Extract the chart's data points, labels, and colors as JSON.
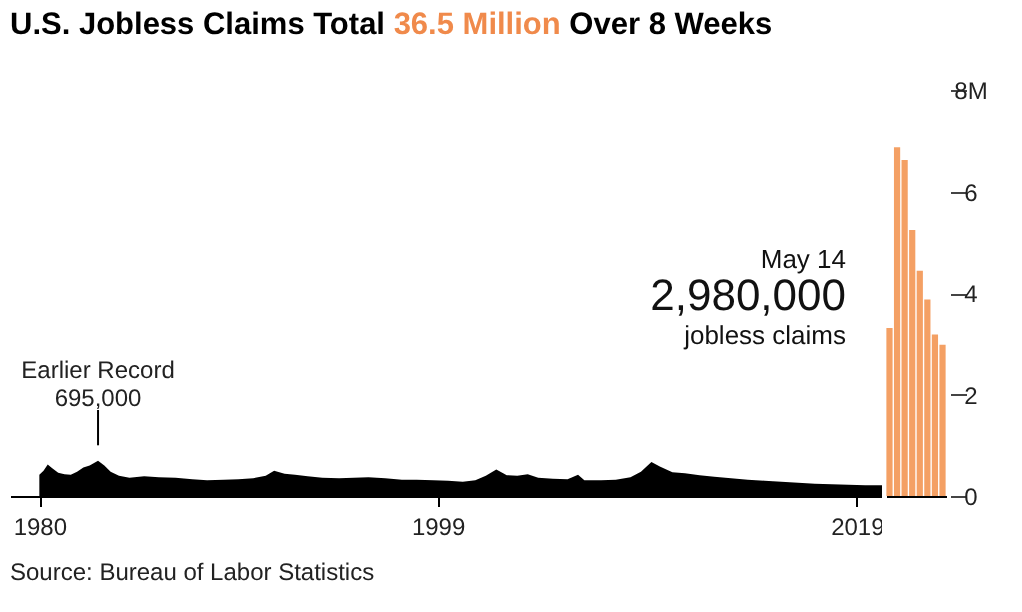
{
  "chart_data": [
    {
      "type": "area",
      "title": "U.S. Jobless Claims Total 36.5 Million Over 8 Weeks",
      "xlim": [
        1978.6,
        2020.2
      ],
      "xticks": [
        1980,
        1999,
        2019
      ],
      "ylim": [
        0,
        8
      ],
      "tick_labels": "x",
      "color": "#000000",
      "x": [
        1980.0,
        1980.2,
        1980.4,
        1980.6,
        1980.9,
        1981.2,
        1981.5,
        1981.8,
        1982.1,
        1982.4,
        1982.8,
        1983.1,
        1983.4,
        1983.8,
        1984.3,
        1985.0,
        1985.7,
        1986.5,
        1987.3,
        1988.0,
        1988.8,
        1989.5,
        1990.2,
        1990.8,
        1991.2,
        1991.7,
        1992.2,
        1992.8,
        1993.5,
        1994.3,
        1995.0,
        1995.7,
        1996.5,
        1997.3,
        1998.0,
        1998.8,
        1999.5,
        2000.2,
        2000.8,
        2001.3,
        2001.8,
        2002.3,
        2002.8,
        2003.3,
        2003.8,
        2004.5,
        2005.2,
        2005.7,
        2006.0,
        2006.8,
        2007.5,
        2008.2,
        2008.7,
        2009.2,
        2009.6,
        2010.2,
        2010.8,
        2011.5,
        2012.2,
        2013.0,
        2013.8,
        2014.6,
        2015.4,
        2016.2,
        2017.0,
        2017.8,
        2018.6,
        2019.4,
        2020.2
      ],
      "values": [
        0.42,
        0.5,
        0.62,
        0.55,
        0.46,
        0.43,
        0.42,
        0.48,
        0.56,
        0.6,
        0.695,
        0.6,
        0.48,
        0.4,
        0.36,
        0.39,
        0.37,
        0.36,
        0.33,
        0.31,
        0.32,
        0.33,
        0.35,
        0.4,
        0.5,
        0.44,
        0.42,
        0.39,
        0.36,
        0.35,
        0.36,
        0.37,
        0.35,
        0.32,
        0.32,
        0.31,
        0.3,
        0.28,
        0.31,
        0.4,
        0.52,
        0.41,
        0.4,
        0.43,
        0.36,
        0.34,
        0.33,
        0.42,
        0.31,
        0.31,
        0.32,
        0.37,
        0.48,
        0.67,
        0.58,
        0.47,
        0.45,
        0.41,
        0.38,
        0.35,
        0.32,
        0.3,
        0.28,
        0.26,
        0.24,
        0.23,
        0.22,
        0.21,
        0.21
      ],
      "annotations": [
        {
          "text": "Earlier Record\n695,000",
          "x": 1982.8,
          "y": 0.695
        },
        "Source: Bureau of Labor Statistics"
      ]
    },
    {
      "type": "bar",
      "categories": [
        null,
        null,
        null,
        null,
        null,
        null,
        null,
        null
      ],
      "values": [
        3.31,
        6.87,
        6.62,
        5.24,
        4.44,
        3.87,
        3.18,
        2.98
      ],
      "color": "#f4a064",
      "ylim": [
        0,
        8
      ],
      "yticks": [
        0,
        2,
        4,
        6,
        {
          "value": 8,
          "label": "8M"
        }
      ],
      "tick_labels": "y",
      "annotations": [
        "May 14",
        "2,980,000",
        "jobless claims"
      ]
    }
  ]
}
